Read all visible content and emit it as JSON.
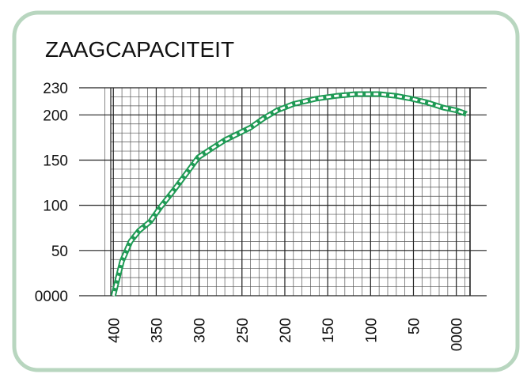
{
  "chart_data": {
    "type": "line",
    "title": "ZAAGCAPACITEIT",
    "x": [
      400,
      390,
      380,
      370,
      357,
      345,
      330,
      315,
      301,
      285,
      270,
      255,
      240,
      225,
      209,
      190,
      163,
      140,
      117,
      90,
      70,
      53,
      35,
      15,
      0,
      -12
    ],
    "series": [
      {
        "color": "#1f9a55",
        "values": [
          0,
          38,
          60,
          72,
          82,
          98,
          116,
          135,
          153,
          163,
          172,
          179,
          186,
          196,
          205,
          212,
          218,
          221,
          223,
          223,
          221,
          218,
          214,
          208,
          205,
          201
        ]
      }
    ],
    "xlim": [
      403,
      -16
    ],
    "ylim": [
      0,
      230
    ],
    "xticks": [
      400,
      350,
      300,
      250,
      200,
      150,
      100,
      50,
      {
        "value": 0,
        "label": "0000"
      }
    ],
    "yticks": [
      {
        "value": 0,
        "label": "0000"
      },
      50,
      100,
      150,
      200,
      230
    ],
    "grid": true
  }
}
